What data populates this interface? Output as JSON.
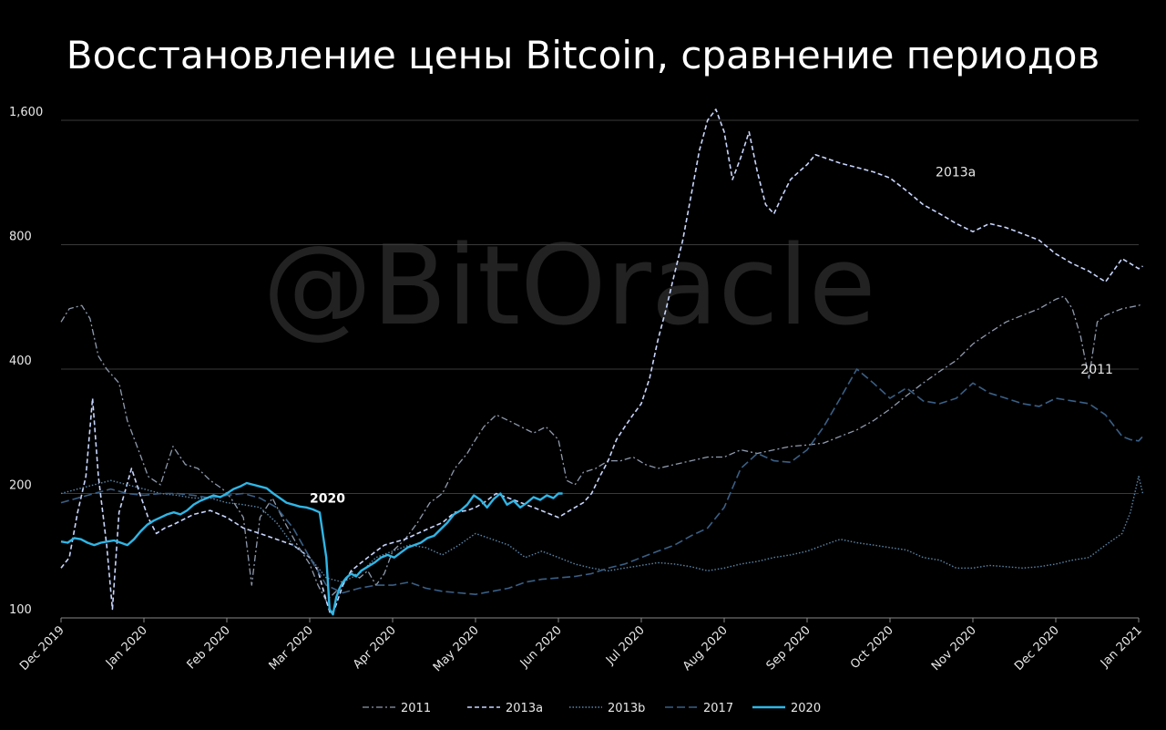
{
  "watermark": "@BitOracle",
  "chart_data": {
    "type": "line",
    "title": "Восстановление цены Bitcoin, сравнение периодов",
    "xlabel": "",
    "ylabel": "",
    "y_scale": "log",
    "ylim": [
      100,
      1700
    ],
    "y_ticks": [
      {
        "value": 100,
        "label": "100"
      },
      {
        "value": 200,
        "label": "200"
      },
      {
        "value": 400,
        "label": "400"
      },
      {
        "value": 800,
        "label": "800"
      },
      {
        "value": 1600,
        "label": "1,600"
      }
    ],
    "x_ticks": [
      "Dec 2019",
      "Jan 2020",
      "Feb 2020",
      "Mar 2020",
      "Apr 2020",
      "May 2020",
      "Jun 2020",
      "Jul 2020",
      "Aug 2020",
      "Sep 2020",
      "Oct 2020",
      "Nov 2020",
      "Dec 2020",
      "Jan 2021"
    ],
    "xlim": [
      0,
      13
    ],
    "grid": "horizontal",
    "legend_position": "bottom",
    "series": [
      {
        "name": "2011",
        "color": "#8f9aae",
        "dash": "7 3 2 3",
        "width": 1.3,
        "x": [
          0,
          0.1,
          0.25,
          0.35,
          0.45,
          0.55,
          0.7,
          0.8,
          0.95,
          1.05,
          1.2,
          1.35,
          1.5,
          1.65,
          1.8,
          1.95,
          2.05,
          2.2,
          2.3,
          2.4,
          2.55,
          2.7,
          2.85,
          3.0,
          3.1,
          3.2,
          3.3,
          3.4,
          3.5,
          3.6,
          3.7,
          3.8,
          3.9,
          4.0,
          4.15,
          4.3,
          4.45,
          4.6,
          4.75,
          4.9,
          5.0,
          5.1,
          5.25,
          5.4,
          5.55,
          5.7,
          5.85,
          6.0,
          6.1,
          6.2,
          6.3,
          6.45,
          6.6,
          6.75,
          6.9,
          7.05,
          7.2,
          7.4,
          7.6,
          7.8,
          8.0,
          8.2,
          8.4,
          8.6,
          8.8,
          9.0,
          9.2,
          9.4,
          9.6,
          9.8,
          10.0,
          10.2,
          10.4,
          10.6,
          10.8,
          11.0,
          11.2,
          11.4,
          11.6,
          11.8,
          12.0,
          12.1,
          12.2,
          12.3,
          12.4,
          12.5,
          12.6,
          12.7,
          12.8,
          12.9,
          13.0,
          13.05
        ],
        "values": [
          520,
          560,
          570,
          530,
          430,
          400,
          370,
          300,
          250,
          220,
          210,
          260,
          235,
          230,
          215,
          205,
          195,
          175,
          120,
          175,
          195,
          170,
          150,
          135,
          120,
          110,
          115,
          120,
          130,
          125,
          130,
          120,
          128,
          145,
          155,
          170,
          190,
          200,
          230,
          250,
          270,
          290,
          310,
          300,
          290,
          280,
          290,
          270,
          215,
          210,
          225,
          230,
          240,
          240,
          245,
          235,
          230,
          235,
          240,
          245,
          245,
          255,
          250,
          255,
          260,
          262,
          265,
          275,
          285,
          300,
          320,
          345,
          370,
          395,
          420,
          460,
          490,
          520,
          540,
          560,
          590,
          600,
          560,
          480,
          380,
          520,
          540,
          550,
          560,
          565,
          570,
          575
        ]
      },
      {
        "name": "2013a",
        "color": "#c8d6ff",
        "dash": "5 3",
        "width": 1.6,
        "x": [
          0,
          0.1,
          0.2,
          0.3,
          0.38,
          0.45,
          0.55,
          0.62,
          0.7,
          0.78,
          0.85,
          0.95,
          1.05,
          1.15,
          1.25,
          1.35,
          1.45,
          1.6,
          1.8,
          2.0,
          2.2,
          2.4,
          2.6,
          2.8,
          3.0,
          3.1,
          3.2,
          3.25,
          3.3,
          3.4,
          3.5,
          3.6,
          3.7,
          3.8,
          3.9,
          4.0,
          4.15,
          4.3,
          4.45,
          4.6,
          4.75,
          4.9,
          5.0,
          5.1,
          5.25,
          5.4,
          5.55,
          5.7,
          5.85,
          6.0,
          6.1,
          6.2,
          6.3,
          6.4,
          6.5,
          6.6,
          6.7,
          6.8,
          6.9,
          7.0,
          7.1,
          7.2,
          7.3,
          7.4,
          7.5,
          7.6,
          7.7,
          7.8,
          7.9,
          8.0,
          8.1,
          8.2,
          8.3,
          8.4,
          8.5,
          8.6,
          8.7,
          8.8,
          8.9,
          9.0,
          9.1,
          9.2,
          9.3,
          9.4,
          9.6,
          9.8,
          10.0,
          10.2,
          10.4,
          10.6,
          10.8,
          11.0,
          11.2,
          11.4,
          11.6,
          11.8,
          12.0,
          12.2,
          12.4,
          12.6,
          12.8,
          12.9,
          13.0,
          13.05
        ],
        "values": [
          132,
          140,
          180,
          220,
          340,
          220,
          150,
          105,
          180,
          205,
          230,
          200,
          175,
          160,
          165,
          168,
          172,
          178,
          182,
          175,
          165,
          160,
          155,
          150,
          140,
          130,
          110,
          102,
          105,
          120,
          130,
          135,
          140,
          145,
          150,
          152,
          155,
          160,
          165,
          170,
          180,
          182,
          185,
          190,
          200,
          195,
          190,
          185,
          180,
          175,
          180,
          185,
          190,
          200,
          220,
          240,
          270,
          290,
          310,
          330,
          380,
          470,
          560,
          680,
          820,
          1050,
          1350,
          1600,
          1700,
          1500,
          1150,
          1300,
          1500,
          1200,
          1000,
          950,
          1050,
          1150,
          1200,
          1250,
          1320,
          1300,
          1280,
          1260,
          1230,
          1200,
          1160,
          1080,
          1000,
          950,
          900,
          860,
          900,
          880,
          850,
          820,
          760,
          720,
          690,
          650,
          740,
          720,
          700,
          710
        ]
      },
      {
        "name": "2013b",
        "color": "#5a85a8",
        "dash": "1.5 2",
        "width": 1.4,
        "x": [
          0,
          0.2,
          0.4,
          0.6,
          0.8,
          1.0,
          1.2,
          1.4,
          1.6,
          1.8,
          2.0,
          2.2,
          2.4,
          2.6,
          2.8,
          3.0,
          3.2,
          3.4,
          3.6,
          3.8,
          4.0,
          4.2,
          4.4,
          4.6,
          4.8,
          5.0,
          5.2,
          5.4,
          5.6,
          5.8,
          6.0,
          6.2,
          6.4,
          6.6,
          6.8,
          7.0,
          7.2,
          7.4,
          7.6,
          7.8,
          8.0,
          8.2,
          8.4,
          8.6,
          8.8,
          9.0,
          9.2,
          9.4,
          9.6,
          9.8,
          10.0,
          10.2,
          10.4,
          10.6,
          10.8,
          11.0,
          11.2,
          11.4,
          11.6,
          11.8,
          12.0,
          12.2,
          12.4,
          12.6,
          12.8,
          12.9,
          13.0,
          13.05
        ],
        "values": [
          200,
          205,
          210,
          215,
          210,
          205,
          200,
          198,
          195,
          195,
          190,
          188,
          185,
          170,
          150,
          140,
          125,
          122,
          128,
          140,
          145,
          150,
          148,
          142,
          150,
          160,
          155,
          150,
          140,
          145,
          140,
          135,
          132,
          130,
          132,
          134,
          136,
          135,
          133,
          130,
          132,
          135,
          137,
          140,
          142,
          145,
          150,
          155,
          152,
          150,
          148,
          146,
          140,
          138,
          132,
          132,
          134,
          133,
          132,
          133,
          135,
          138,
          140,
          150,
          160,
          180,
          220,
          200
        ]
      },
      {
        "name": "2017",
        "color": "#3a5f86",
        "dash": "9 4",
        "width": 1.6,
        "x": [
          0,
          0.2,
          0.4,
          0.6,
          0.8,
          1.0,
          1.2,
          1.4,
          1.6,
          1.8,
          2.0,
          2.2,
          2.4,
          2.6,
          2.8,
          3.0,
          3.2,
          3.4,
          3.6,
          3.8,
          4.0,
          4.2,
          4.4,
          4.6,
          4.8,
          5.0,
          5.2,
          5.4,
          5.6,
          5.8,
          6.0,
          6.2,
          6.4,
          6.6,
          6.8,
          7.0,
          7.2,
          7.4,
          7.6,
          7.8,
          8.0,
          8.2,
          8.4,
          8.6,
          8.8,
          9.0,
          9.2,
          9.4,
          9.6,
          9.8,
          10.0,
          10.2,
          10.4,
          10.6,
          10.8,
          11.0,
          11.2,
          11.4,
          11.6,
          11.8,
          12.0,
          12.2,
          12.4,
          12.6,
          12.8,
          12.9,
          13.0,
          13.05
        ],
        "values": [
          190,
          195,
          200,
          205,
          200,
          198,
          200,
          200,
          198,
          195,
          198,
          200,
          195,
          185,
          165,
          140,
          120,
          115,
          118,
          120,
          120,
          122,
          118,
          116,
          115,
          114,
          116,
          118,
          122,
          124,
          125,
          126,
          128,
          132,
          135,
          140,
          145,
          150,
          158,
          165,
          185,
          230,
          250,
          240,
          238,
          255,
          290,
          340,
          400,
          370,
          340,
          360,
          335,
          330,
          340,
          370,
          350,
          340,
          330,
          325,
          340,
          335,
          330,
          310,
          275,
          270,
          268,
          275
        ]
      },
      {
        "name": "2020",
        "color": "#2fb6e6",
        "dash": "",
        "width": 2.4,
        "x": [
          0,
          0.08,
          0.16,
          0.24,
          0.32,
          0.4,
          0.48,
          0.56,
          0.64,
          0.72,
          0.8,
          0.88,
          0.96,
          1.04,
          1.12,
          1.2,
          1.28,
          1.36,
          1.44,
          1.52,
          1.6,
          1.68,
          1.76,
          1.84,
          1.92,
          2.0,
          2.08,
          2.16,
          2.24,
          2.32,
          2.4,
          2.48,
          2.56,
          2.64,
          2.72,
          2.8,
          2.88,
          2.96,
          3.04,
          3.12,
          3.2,
          3.24,
          3.28,
          3.32,
          3.36,
          3.4,
          3.44,
          3.5,
          3.56,
          3.62,
          3.7,
          3.78,
          3.86,
          3.94,
          4.02,
          4.1,
          4.18,
          4.26,
          4.34,
          4.42,
          4.5,
          4.58,
          4.66,
          4.74,
          4.82,
          4.9,
          4.98,
          5.06,
          5.14,
          5.22,
          5.3,
          5.38,
          5.46,
          5.54,
          5.62,
          5.7,
          5.78,
          5.86,
          5.94,
          6.0,
          6.05
        ],
        "values": [
          153,
          152,
          156,
          155,
          152,
          150,
          152,
          153,
          154,
          152,
          150,
          155,
          162,
          168,
          172,
          175,
          178,
          180,
          178,
          182,
          188,
          192,
          195,
          198,
          196,
          200,
          205,
          208,
          212,
          210,
          208,
          206,
          200,
          195,
          190,
          188,
          186,
          185,
          183,
          180,
          140,
          105,
          102,
          112,
          118,
          122,
          125,
          128,
          126,
          130,
          133,
          136,
          140,
          142,
          140,
          144,
          148,
          150,
          152,
          156,
          158,
          164,
          170,
          178,
          182,
          188,
          198,
          193,
          185,
          194,
          200,
          188,
          192,
          185,
          190,
          196,
          193,
          198,
          195,
          200,
          200
        ]
      }
    ],
    "annotations": [
      {
        "text": "2020",
        "x": 3.0,
        "y": 190,
        "bold": true
      },
      {
        "text": "2013a",
        "x": 10.55,
        "y": 1170,
        "bold": false
      },
      {
        "text": "2011",
        "x": 12.3,
        "y": 390,
        "bold": false
      }
    ]
  }
}
